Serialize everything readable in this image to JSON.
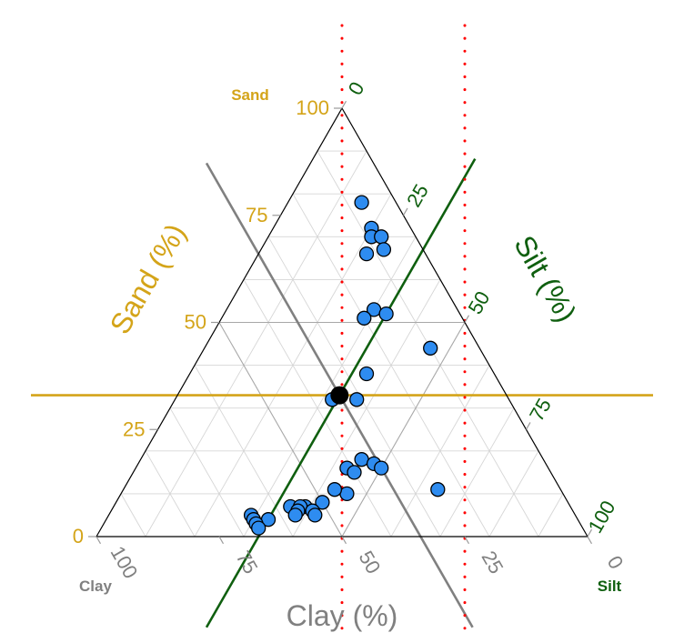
{
  "chart_data": {
    "type": "scatter",
    "subtype": "ternary",
    "axes": {
      "sand": {
        "corner_label": "Sand",
        "title": "Sand (%)",
        "color": "#D4A419",
        "ticks": [
          0,
          25,
          50,
          75,
          100
        ],
        "tick_labels": [
          "0",
          "25",
          "50",
          "75",
          "100"
        ]
      },
      "silt": {
        "corner_label": "Silt",
        "title": "Silt (%)",
        "color": "#0F5F0F",
        "ticks": [
          0,
          25,
          50,
          75,
          100
        ],
        "tick_labels": [
          "0",
          "25",
          "50",
          "75",
          "100"
        ]
      },
      "clay": {
        "corner_label": "Clay",
        "title": "Clay (%)",
        "color": "#808080",
        "ticks": [
          0,
          25,
          50,
          75,
          100
        ],
        "tick_labels": [
          "0",
          "25",
          "50",
          "75",
          "100"
        ]
      }
    },
    "grid": true,
    "grid_step": 10,
    "point_color": "#2E8CF0",
    "points": [
      {
        "sand": 78,
        "silt": 15,
        "clay": 7
      },
      {
        "sand": 72,
        "silt": 20,
        "clay": 8
      },
      {
        "sand": 70,
        "silt": 21,
        "clay": 9
      },
      {
        "sand": 70,
        "silt": 23,
        "clay": 7
      },
      {
        "sand": 67,
        "silt": 25,
        "clay": 8
      },
      {
        "sand": 66,
        "silt": 22,
        "clay": 12
      },
      {
        "sand": 53,
        "silt": 30,
        "clay": 17
      },
      {
        "sand": 52,
        "silt": 33,
        "clay": 15
      },
      {
        "sand": 51,
        "silt": 29,
        "clay": 20
      },
      {
        "sand": 44,
        "silt": 46,
        "clay": 10
      },
      {
        "sand": 38,
        "silt": 36,
        "clay": 26
      },
      {
        "sand": 32,
        "silt": 32,
        "clay": 36
      },
      {
        "sand": 32,
        "silt": 37,
        "clay": 31
      },
      {
        "sand": 18,
        "silt": 45,
        "clay": 37
      },
      {
        "sand": 17,
        "silt": 48,
        "clay": 35
      },
      {
        "sand": 16,
        "silt": 50,
        "clay": 34
      },
      {
        "sand": 16,
        "silt": 43,
        "clay": 41
      },
      {
        "sand": 15,
        "silt": 45,
        "clay": 40
      },
      {
        "sand": 11,
        "silt": 64,
        "clay": 25
      },
      {
        "sand": 10,
        "silt": 46,
        "clay": 44
      },
      {
        "sand": 11,
        "silt": 43,
        "clay": 46
      },
      {
        "sand": 8,
        "silt": 42,
        "clay": 50
      },
      {
        "sand": 7,
        "silt": 36,
        "clay": 57
      },
      {
        "sand": 7,
        "silt": 39,
        "clay": 54
      },
      {
        "sand": 7,
        "silt": 38,
        "clay": 55
      },
      {
        "sand": 6,
        "silt": 38,
        "clay": 56
      },
      {
        "sand": 6,
        "silt": 41,
        "clay": 53
      },
      {
        "sand": 5,
        "silt": 42,
        "clay": 53
      },
      {
        "sand": 5,
        "silt": 38,
        "clay": 57
      },
      {
        "sand": 5,
        "silt": 29,
        "clay": 66
      },
      {
        "sand": 4,
        "silt": 30,
        "clay": 66
      },
      {
        "sand": 4,
        "silt": 33,
        "clay": 63
      },
      {
        "sand": 3,
        "silt": 31,
        "clay": 66
      },
      {
        "sand": 2,
        "silt": 32,
        "clay": 66
      }
    ],
    "highlight_point": {
      "sand": 33,
      "silt": 33,
      "clay": 34,
      "color": "#000000"
    },
    "reference_lines": {
      "constant_sand": {
        "value": 33,
        "color": "#D4A419"
      },
      "constant_silt": {
        "value": 33,
        "color": "#0F5F0F"
      },
      "constant_clay": {
        "value": 34,
        "color": "#808080"
      },
      "vertical_dotted": {
        "color": "#FF0000",
        "clay_at_base": [
          50,
          25
        ]
      }
    }
  }
}
